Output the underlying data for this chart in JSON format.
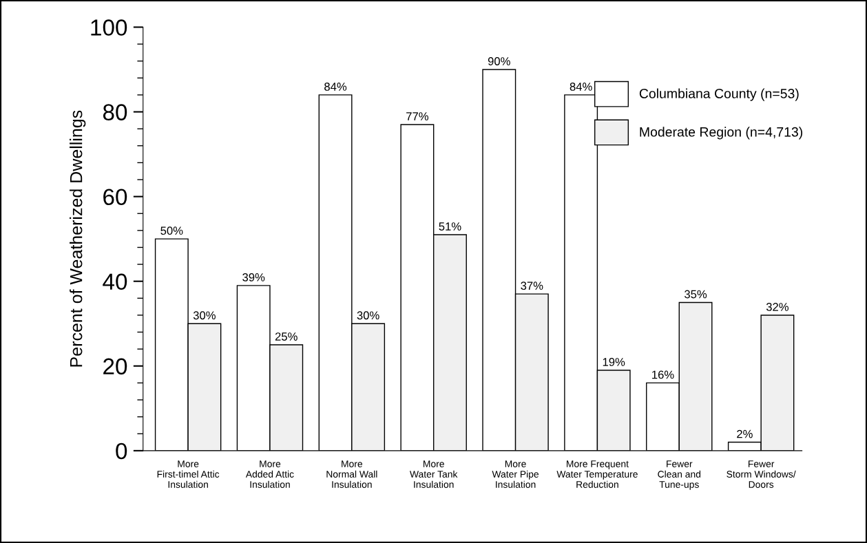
{
  "chart_data": {
    "type": "bar",
    "ylabel": "Percent of Weatherized Dwellings",
    "categories": [
      "More\nFirst-timel Attic\nInsulation",
      "More\nAdded Attic\nInsulation",
      "More\nNormal Wall\nInsulation",
      "More\nWater Tank\nInsulation",
      "More\nWater Pipe\nInsulation",
      "More Frequent\nWater Temperature\nReduction",
      "Fewer\nClean and\nTune-ups",
      "Fewer\nStorm Windows/\nDoors"
    ],
    "series": [
      {
        "name": "Columbiana County (n=53)",
        "color": "#ffffff",
        "values": [
          50,
          39,
          84,
          77,
          90,
          84,
          16,
          2
        ],
        "value_labels": [
          "50%",
          "39%",
          "84%",
          "77%",
          "90%",
          "84%",
          "16%",
          "2%"
        ]
      },
      {
        "name": "Moderate Region (n=4,713)",
        "color": "#f0f0f0",
        "values": [
          30,
          25,
          30,
          51,
          37,
          19,
          35,
          32
        ],
        "value_labels": [
          "30%",
          "25%",
          "30%",
          "51%",
          "37%",
          "19%",
          "35%",
          "32%"
        ]
      }
    ],
    "ylim": [
      0,
      100
    ],
    "yticks": [
      0,
      20,
      40,
      60,
      80,
      100
    ],
    "legend": "top right",
    "grid": false
  }
}
